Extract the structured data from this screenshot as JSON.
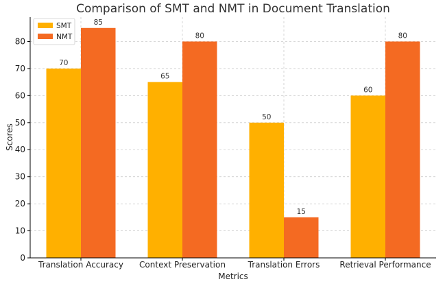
{
  "chart_data": {
    "type": "bar",
    "title": "Comparison of SMT and NMT in Document Translation",
    "xlabel": "Metrics",
    "ylabel": "Scores",
    "categories": [
      "Translation Accuracy",
      "Context Preservation",
      "Translation Errors",
      "Retrieval Performance"
    ],
    "series": [
      {
        "name": "SMT",
        "values": [
          70,
          65,
          50,
          60
        ],
        "color": "#FFB000"
      },
      {
        "name": "NMT",
        "values": [
          85,
          80,
          15,
          80
        ],
        "color": "#F46A22"
      }
    ],
    "ylim": [
      0,
      89
    ],
    "yticks": [
      "0",
      "10",
      "20",
      "30",
      "40",
      "50",
      "60",
      "70",
      "80"
    ],
    "grid": true,
    "legend_position": "top-left",
    "data_labels": true
  }
}
